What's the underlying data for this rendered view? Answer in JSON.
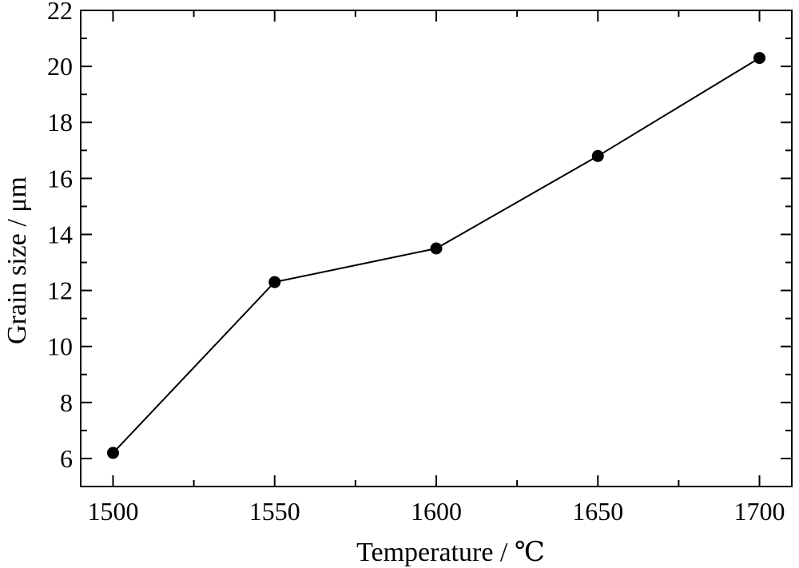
{
  "chart_data": {
    "type": "line",
    "xlabel": "Temperature / ℃",
    "ylabel": "Grain size / μm",
    "xlim": [
      1490,
      1710
    ],
    "ylim": [
      5,
      22
    ],
    "x_ticks": [
      1500,
      1550,
      1600,
      1650,
      1700
    ],
    "x_minor_ticks": [
      1525,
      1575,
      1625,
      1675
    ],
    "y_ticks": [
      6,
      8,
      10,
      12,
      14,
      16,
      18,
      20,
      22
    ],
    "y_minor_ticks": [
      7,
      9,
      11,
      13,
      15,
      17,
      19,
      21
    ],
    "grid": false,
    "series": [
      {
        "x": [
          1500,
          1550,
          1600,
          1650,
          1700
        ],
        "values": [
          6.2,
          12.3,
          13.5,
          16.8,
          20.3
        ],
        "color": "#000000",
        "marker": "circle"
      }
    ]
  }
}
